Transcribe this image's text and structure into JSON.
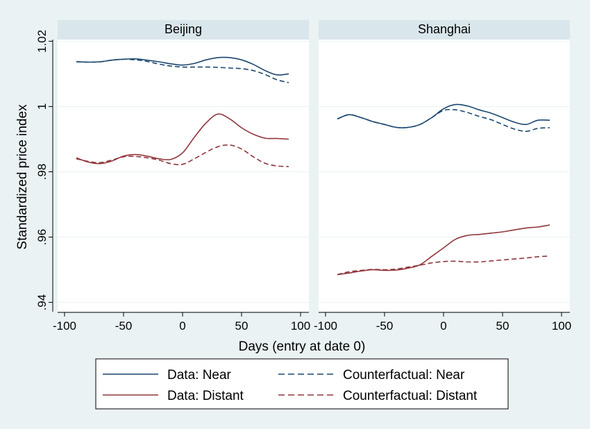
{
  "chart_data": {
    "type": "line",
    "ylabel": "Standardized price index",
    "xlabel": "Days (entry at date 0)",
    "xlim": [
      -100,
      100
    ],
    "ylim": [
      0.938,
      1.022
    ],
    "x_ticks": [
      -100,
      -50,
      0,
      50,
      100
    ],
    "x_tick_labels": [
      "-100",
      "-50",
      "0",
      "50",
      "100"
    ],
    "y_ticks": [
      0.94,
      0.96,
      0.98,
      1.0,
      1.02
    ],
    "y_tick_labels": [
      ".94",
      ".96",
      ".98",
      "1",
      "1.02"
    ],
    "grid": true,
    "legend_position": "bottom",
    "colors": {
      "near": "#1a476f",
      "distant": "#90353b",
      "background": "#eaf2f3",
      "panel_header": "#d9e6eb"
    },
    "legend": [
      {
        "label": "Data: Near",
        "color": "#1a476f",
        "dash": "solid"
      },
      {
        "label": "Counterfactual: Near",
        "color": "#1a476f",
        "dash": "dashed"
      },
      {
        "label": "Data: Distant",
        "color": "#90353b",
        "dash": "solid"
      },
      {
        "label": "Counterfactual: Distant",
        "color": "#90353b",
        "dash": "dashed"
      }
    ],
    "panels": [
      {
        "title": "Beijing",
        "series": [
          {
            "name": "Data: Near",
            "color": "#1a476f",
            "dash": "solid",
            "x": [
              -90,
              -80,
              -70,
              -60,
              -50,
              -40,
              -30,
              -20,
              -10,
              0,
              10,
              20,
              30,
              40,
              50,
              60,
              70,
              80,
              90
            ],
            "y": [
              1.0137,
              1.0136,
              1.0137,
              1.0142,
              1.0145,
              1.0146,
              1.0142,
              1.0137,
              1.0131,
              1.0127,
              1.0132,
              1.0143,
              1.015,
              1.015,
              1.0143,
              1.0129,
              1.011,
              1.0097,
              1.01
            ]
          },
          {
            "name": "Counterfactual: Near",
            "color": "#1a476f",
            "dash": "dashed",
            "x": [
              -90,
              -80,
              -70,
              -60,
              -50,
              -40,
              -30,
              -20,
              -10,
              0,
              10,
              20,
              30,
              40,
              50,
              60,
              70,
              80,
              90
            ],
            "y": [
              1.0137,
              1.0136,
              1.0137,
              1.0142,
              1.0145,
              1.0143,
              1.0138,
              1.013,
              1.0124,
              1.0121,
              1.0121,
              1.0121,
              1.012,
              1.0118,
              1.0116,
              1.011,
              1.0098,
              1.0082,
              1.0073
            ]
          },
          {
            "name": "Data: Distant",
            "color": "#90353b",
            "dash": "solid",
            "x": [
              -90,
              -80,
              -70,
              -60,
              -50,
              -40,
              -30,
              -20,
              -10,
              0,
              10,
              20,
              30,
              40,
              50,
              60,
              70,
              80,
              90
            ],
            "y": [
              0.9843,
              0.983,
              0.9825,
              0.9833,
              0.9848,
              0.9853,
              0.9848,
              0.984,
              0.9838,
              0.9858,
              0.9906,
              0.995,
              0.9977,
              0.9962,
              0.9935,
              0.9915,
              0.9903,
              0.9902,
              0.99
            ]
          },
          {
            "name": "Counterfactual: Distant",
            "color": "#90353b",
            "dash": "dashed",
            "x": [
              -90,
              -80,
              -70,
              -60,
              -50,
              -40,
              -30,
              -20,
              -10,
              0,
              10,
              20,
              30,
              40,
              50,
              60,
              70,
              80,
              90
            ],
            "y": [
              0.984,
              0.9832,
              0.9828,
              0.9836,
              0.9846,
              0.9847,
              0.9843,
              0.9836,
              0.9825,
              0.9823,
              0.984,
              0.986,
              0.9877,
              0.9882,
              0.987,
              0.9846,
              0.9826,
              0.9818,
              0.9816
            ]
          }
        ]
      },
      {
        "title": "Shanghai",
        "series": [
          {
            "name": "Data: Near",
            "color": "#1a476f",
            "dash": "solid",
            "x": [
              -90,
              -80,
              -70,
              -60,
              -50,
              -40,
              -30,
              -20,
              -10,
              0,
              10,
              20,
              30,
              40,
              50,
              60,
              70,
              80,
              90
            ],
            "y": [
              0.9962,
              0.9975,
              0.9966,
              0.9954,
              0.9945,
              0.9936,
              0.9936,
              0.9945,
              0.9966,
              0.9993,
              1.0006,
              1.0002,
              0.999,
              0.998,
              0.9966,
              0.9952,
              0.9945,
              0.9958,
              0.9958
            ]
          },
          {
            "name": "Counterfactual: Near",
            "color": "#1a476f",
            "dash": "dashed",
            "x": [
              -90,
              -80,
              -70,
              -60,
              -50,
              -40,
              -30,
              -20,
              -10,
              0,
              10,
              20,
              30,
              40,
              50,
              60,
              70,
              80,
              90
            ],
            "y": [
              0.9962,
              0.9975,
              0.9966,
              0.9954,
              0.9945,
              0.9936,
              0.9936,
              0.9945,
              0.9966,
              0.9988,
              0.999,
              0.9982,
              0.997,
              0.996,
              0.9945,
              0.9931,
              0.9924,
              0.9933,
              0.9935
            ]
          },
          {
            "name": "Data: Distant",
            "color": "#90353b",
            "dash": "solid",
            "x": [
              -90,
              -80,
              -70,
              -60,
              -50,
              -40,
              -30,
              -20,
              -10,
              0,
              10,
              20,
              30,
              40,
              50,
              60,
              70,
              80,
              90
            ],
            "y": [
              0.9485,
              0.949,
              0.9496,
              0.95,
              0.9498,
              0.9499,
              0.9505,
              0.9515,
              0.9541,
              0.9567,
              0.9593,
              0.9605,
              0.9608,
              0.9612,
              0.9616,
              0.9622,
              0.9628,
              0.9631,
              0.9637
            ]
          },
          {
            "name": "Counterfactual: Distant",
            "color": "#90353b",
            "dash": "dashed",
            "x": [
              -90,
              -80,
              -70,
              -60,
              -50,
              -40,
              -30,
              -20,
              -10,
              0,
              10,
              20,
              30,
              40,
              50,
              60,
              70,
              80,
              90
            ],
            "y": [
              0.9485,
              0.9494,
              0.9498,
              0.9501,
              0.95,
              0.9502,
              0.9508,
              0.9514,
              0.9521,
              0.9525,
              0.9526,
              0.9524,
              0.9524,
              0.9527,
              0.953,
              0.9533,
              0.9536,
              0.954,
              0.9542
            ]
          }
        ]
      }
    ]
  }
}
